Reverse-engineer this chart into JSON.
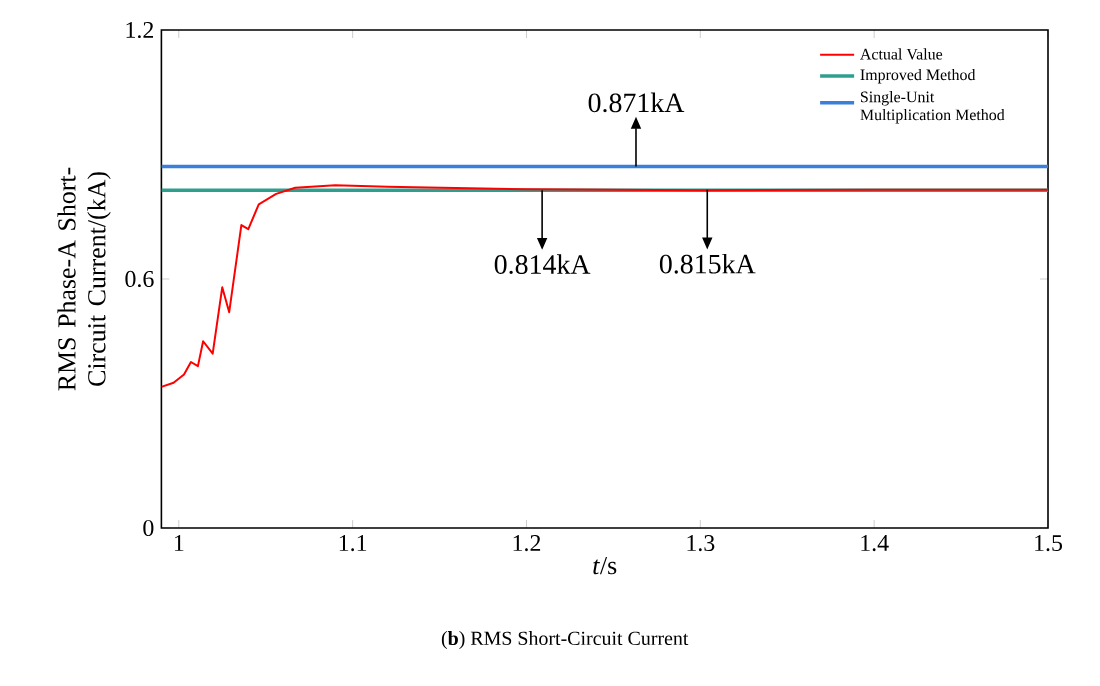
{
  "chart_data": {
    "type": "line",
    "title": "(**b**) RMS Short-Circuit Current",
    "xlabel": "*t*/s",
    "ylabel": "RMS Phase-A Short-Circuit Current/(kA)",
    "xlim": [
      0.99,
      1.5
    ],
    "ylim": [
      0,
      1.2
    ],
    "xticks": [
      1,
      1.1,
      1.2,
      1.3,
      1.4,
      1.5
    ],
    "yticks": [
      0,
      0.6,
      1.2
    ],
    "grid": false,
    "legend": "top right",
    "marker": "none",
    "line_style": "solid",
    "series": [
      {
        "name": "Actual Value",
        "color": "#ff0000",
        "x": [
          0.99,
          0.997,
          1.003,
          1.007,
          1.011,
          1.014,
          1.0195,
          1.025,
          1.029,
          1.036,
          1.04,
          1.046,
          1.056,
          1.067,
          1.09,
          1.12,
          1.2,
          1.3,
          1.4,
          1.5
        ],
        "values": [
          0.34,
          0.35,
          0.37,
          0.4,
          0.39,
          0.45,
          0.42,
          0.58,
          0.52,
          0.73,
          0.72,
          0.78,
          0.805,
          0.82,
          0.826,
          0.822,
          0.816,
          0.814,
          0.815,
          0.815
        ]
      },
      {
        "name": "Improved Method",
        "color": "#2e9e8e",
        "x": [
          0.99,
          1.5
        ],
        "values": [
          0.814,
          0.814
        ]
      },
      {
        "name": "Single-Unit Multiplication Method",
        "color": "#3a7fd9",
        "x": [
          0.99,
          1.5
        ],
        "values": [
          0.871,
          0.871
        ]
      }
    ],
    "annotations": [
      {
        "text": "0.871kA",
        "x": 1.263,
        "y": 0.871
      },
      {
        "text": "0.814kA",
        "x": 1.209,
        "y": 0.814
      },
      {
        "text": "0.815kA",
        "x": 1.304,
        "y": 0.815
      }
    ]
  }
}
